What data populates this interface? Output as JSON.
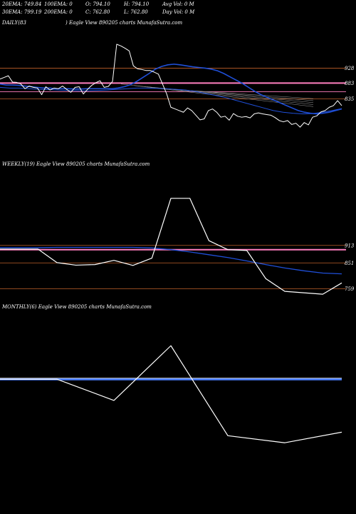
{
  "header": {
    "row1": {
      "ema20": "20EMA: 749.84",
      "ema100": "100EMA: 0",
      "open": "O: 794.10",
      "high": "H: 794.10",
      "avgvol": "Avg Vol: 0  M"
    },
    "row2": {
      "ema30": "30EMA: 799.19",
      "ema200": "200EMA: 0",
      "close": "C: 762.80",
      "low": "L: 762.80",
      "dayvol": "Day Vol: 0  M"
    }
  },
  "panels": {
    "daily": {
      "label": "DAILY(83",
      "caption": ") Eagle   View  890205 charts MunafaSutra.com"
    },
    "weekly": {
      "label": "WEEKLY(19) Eagle   View  890205 charts MunafaSutra.com"
    },
    "monthly": {
      "label": "MONTHLY(6) Eagle   View  890205 charts MunafaSutra.com"
    }
  },
  "colors": {
    "background": "#000000",
    "price": "#ffffff",
    "ema": "#1f4fd8",
    "ema_light": "#4a7fff",
    "level_pink": "#ff7fbf",
    "level_orange": "#c0602a",
    "level_grey": "#9a9a9a"
  },
  "chart_data": [
    {
      "type": "line",
      "title": "DAILY(83",
      "ylim": [
        690,
        1000
      ],
      "levels": [
        {
          "value": 928,
          "label": "928",
          "color": "#c0602a"
        },
        {
          "value": 883,
          "label": "883",
          "color": "#ff7fbf"
        },
        {
          "value": 857,
          "label": "",
          "color": "#ff7fbf"
        },
        {
          "value": 835,
          "label": "835",
          "color": "#c0602a"
        }
      ],
      "price": [
        895,
        900,
        905,
        886,
        885,
        880,
        866,
        874,
        870,
        868,
        848,
        872,
        862,
        868,
        866,
        874,
        864,
        855,
        870,
        872,
        850,
        864,
        876,
        884,
        890,
        870,
        873,
        888,
        1000,
        995,
        988,
        980,
        935,
        926,
        924,
        921,
        921,
        916,
        910,
        880,
        850,
        810,
        805,
        800,
        795,
        808,
        800,
        786,
        772,
        775,
        800,
        805,
        795,
        780,
        783,
        771,
        791,
        783,
        780,
        782,
        778,
        790,
        793,
        790,
        788,
        786,
        779,
        770,
        766,
        770,
        758,
        762,
        750,
        764,
        757,
        780,
        784,
        796,
        800,
        810,
        815,
        830,
        815
      ],
      "ema": [
        880,
        877,
        877,
        876,
        874,
        872,
        870,
        868,
        868,
        866,
        866,
        866,
        865,
        865,
        866,
        866,
        866,
        866,
        866,
        868,
        872,
        878,
        888,
        900,
        912,
        925,
        933,
        938,
        940,
        938,
        935,
        932,
        930,
        928,
        925,
        920,
        912,
        902,
        892,
        882,
        870,
        858,
        848,
        840,
        832,
        824,
        816,
        808,
        800,
        795,
        792,
        790,
        792,
        795,
        800,
        805
      ],
      "ema2": [
        870,
        868,
        868,
        866,
        864,
        863,
        862,
        861,
        860,
        860,
        861,
        862,
        864,
        866,
        868,
        868,
        867,
        866,
        864,
        862,
        858,
        852,
        846,
        840,
        832,
        824,
        816,
        808,
        800,
        795,
        792,
        790,
        791,
        795,
        800,
        806
      ]
    },
    {
      "type": "line",
      "title": "WEEKLY(19)",
      "ylim": [
        720,
        1120
      ],
      "levels": [
        {
          "value": 913,
          "label": "913",
          "color": "#c0602a"
        },
        {
          "value": 898,
          "label": "",
          "color": "#ff7fbf"
        },
        {
          "value": 851,
          "label": "851",
          "color": "#c0602a"
        },
        {
          "value": 759,
          "label": "759",
          "color": "#c0602a"
        }
      ],
      "price": [
        900,
        900,
        900,
        852,
        843,
        845,
        860,
        842,
        868,
        1080,
        1080,
        930,
        898,
        895,
        795,
        750,
        745,
        740,
        780
      ],
      "ema": [
        905,
        905,
        905,
        906,
        906,
        906,
        906,
        906,
        904,
        898,
        890,
        880,
        870,
        858,
        845,
        833,
        823,
        815,
        812
      ]
    },
    {
      "type": "line",
      "title": "MONTHLY(6)",
      "ylim": [
        660,
        1020
      ],
      "price": [
        880,
        880,
        820,
        975,
        720,
        700,
        730
      ],
      "ema": [
        880,
        880,
        880,
        880,
        880,
        880,
        880
      ]
    }
  ]
}
